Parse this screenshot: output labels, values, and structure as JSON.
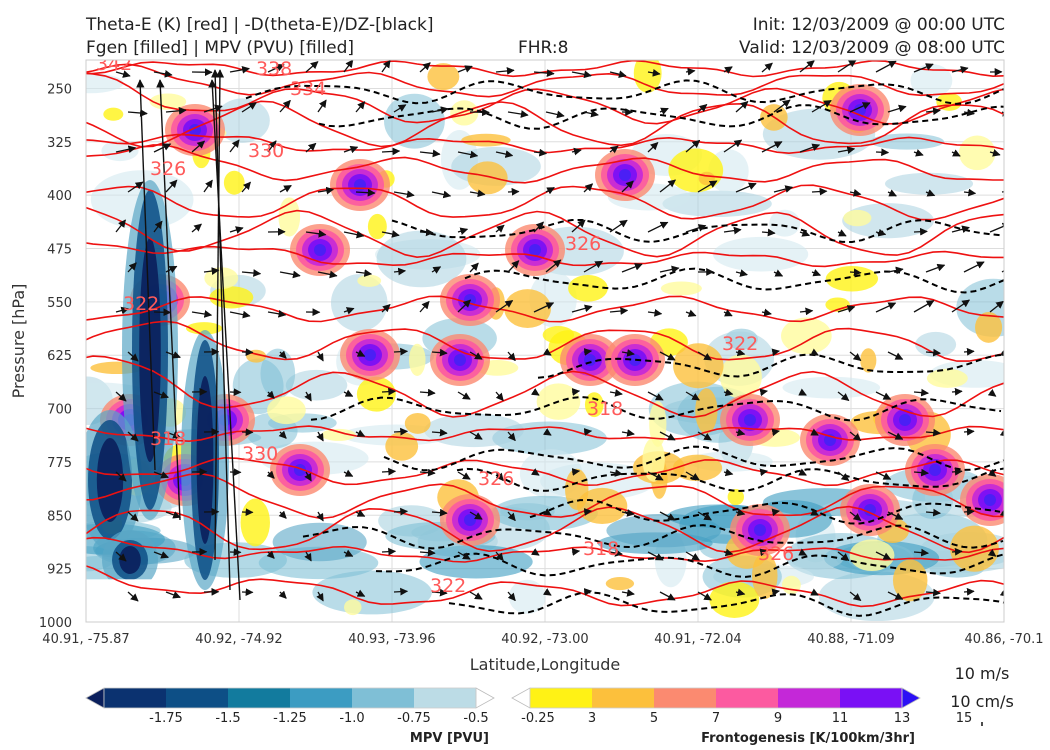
{
  "header": {
    "title_left_1": "Theta-E (K) [red] | -D(theta-E)/DZ-[black]",
    "title_left_2": "Fgen [filled] | MPV (PVU) [filled]",
    "fhr": "FHR:8",
    "init": "Init: 12/03/2009 @ 00:00 UTC",
    "valid": "Valid: 12/03/2009 @ 08:00 UTC"
  },
  "chart_data": {
    "type": "contour",
    "xlabel": "Latitude,Longitude",
    "ylabel": "Pressure [hPa]",
    "x_ticks": [
      "40.91, -75.87",
      "40.92, -74.92",
      "40.93, -73.96",
      "40.92, -73.00",
      "40.91, -72.04",
      "40.88, -71.09",
      "40.86, -70.1"
    ],
    "y_ticks": [
      250,
      325,
      400,
      475,
      550,
      625,
      700,
      775,
      850,
      925,
      1000
    ],
    "ylim": [
      1000,
      210
    ],
    "theta_e_contour_labels": [
      "342",
      "338",
      "334",
      "330",
      "326",
      "326",
      "322",
      "322",
      "318",
      "318",
      "330",
      "326",
      "318",
      "322",
      "326"
    ],
    "colorbars": [
      {
        "label": "MPV [PVU]",
        "tick_labels": [
          "-1.75",
          "-1.5",
          "-1.25",
          "-1.0",
          "-0.75",
          "-0.5",
          "-0.25"
        ],
        "colors": [
          "#0a1f5c",
          "#0b3270",
          "#0d4f86",
          "#127b9e",
          "#3c9cc2",
          "#7fbfd6",
          "#bcdce6",
          "#ffffff"
        ]
      },
      {
        "label": "Frontogenesis [K/100km/3hr]",
        "tick_labels": [
          "3",
          "5",
          "7",
          "9",
          "11",
          "13",
          "15"
        ],
        "colors": [
          "#ffffff",
          "#fff215",
          "#fcc03c",
          "#fb8a70",
          "#fc5aa0",
          "#c428d8",
          "#7a10f5",
          "#2c10f5"
        ]
      }
    ],
    "wind_key": {
      "horizontal": "10 m/s",
      "vertical": "10 cm/s"
    }
  }
}
